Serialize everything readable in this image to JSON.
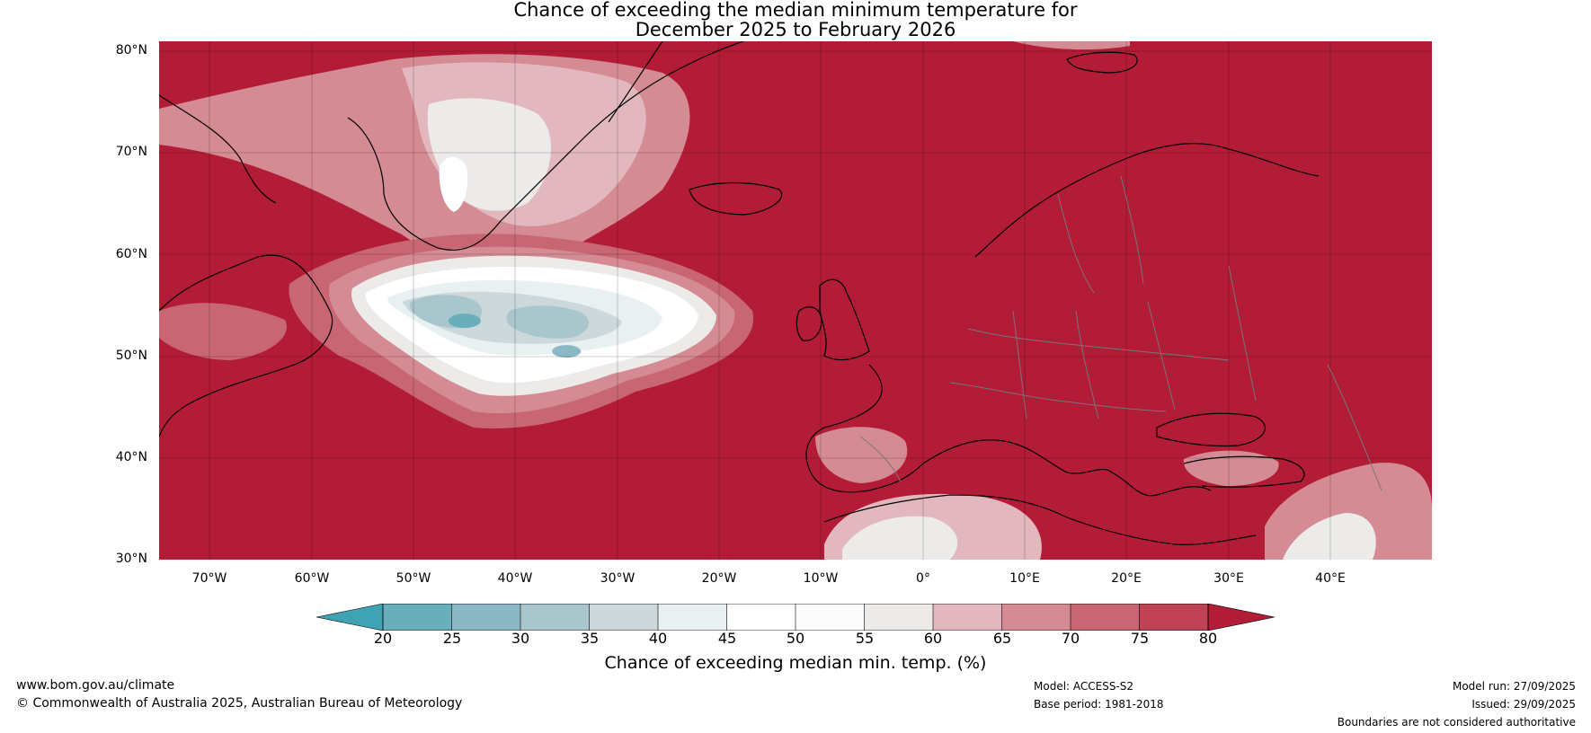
{
  "title": {
    "line1": "Chance of exceeding the median minimum temperature for",
    "line2": "December 2025 to February 2026"
  },
  "axes": {
    "lat_labels": [
      "80°N",
      "70°N",
      "60°N",
      "50°N",
      "40°N",
      "30°N"
    ],
    "lon_labels": [
      "70°W",
      "60°W",
      "50°W",
      "40°W",
      "30°W",
      "20°W",
      "10°W",
      "0°",
      "10°E",
      "20°E",
      "30°E",
      "40°E"
    ],
    "lat_range": [
      30,
      81
    ],
    "lon_range": [
      -75,
      50
    ]
  },
  "regions": {
    "cool_core_west": {
      "lon": -45,
      "lat": 53.5,
      "prob": 25
    },
    "cool_core_east": {
      "lon": -35,
      "lat": 50.5,
      "prob": 30
    },
    "greenland_interior": {
      "lon": -45,
      "lat": 68,
      "prob": 55
    },
    "background": {
      "prob": 80
    }
  },
  "colorbar": {
    "ticks": [
      "20",
      "25",
      "30",
      "35",
      "40",
      "45",
      "50",
      "55",
      "60",
      "65",
      "70",
      "75",
      "80"
    ],
    "label": "Chance of exceeding median min. temp. (%)",
    "colors": {
      "below20": "#3fa3b4",
      "20-25": "#6aaebb",
      "25-30": "#8bb8c4",
      "30-35": "#aac6cd",
      "35-40": "#ccd8dc",
      "40-45": "#e9f0f2",
      "45-50": "#ffffff",
      "50-55": "#fcfcfc",
      "55-60": "#ecebea",
      "60-65": "#e2b8be",
      "65-70": "#d48b93",
      "70-75": "#c96673",
      "75-80": "#bf4355",
      "above80": "#b31c36"
    }
  },
  "footer": {
    "website": "www.bom.gov.au/climate",
    "copyright": "© Commonwealth of Australia 2025, Australian Bureau of Meteorology",
    "model": "Model: ACCESS-S2",
    "base_period": "Base period: 1981-2018",
    "model_run": "Model run: 27/09/2025",
    "issued": "Issued: 29/09/2025",
    "disclaimer": "Boundaries are not considered authoritative"
  }
}
